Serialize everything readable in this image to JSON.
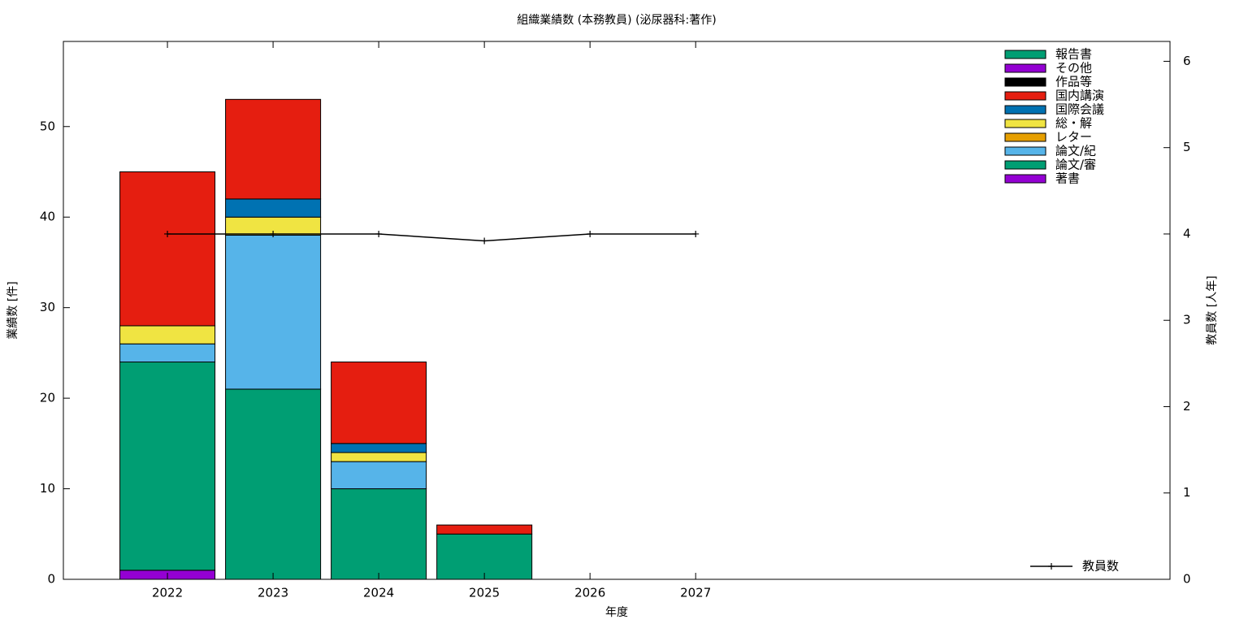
{
  "chart_data": {
    "type": "bar",
    "title": "組織業績数 (本務教員) (泌尿器科:著作)",
    "xlabel": "年度",
    "ylabel": "業績数 [件]",
    "y2label": "教員数 [人年]",
    "x": [
      2022,
      2023,
      2024,
      2025,
      2026,
      2027
    ],
    "xlim": [
      2021.015,
      2031.49
    ],
    "xticks": [
      2022,
      2023,
      2024,
      2025,
      2026,
      2027
    ],
    "ylim": [
      0,
      59.4
    ],
    "yticks": [
      0,
      10,
      20,
      30,
      40,
      50
    ],
    "y2lim": [
      0,
      6.23
    ],
    "y2ticks": [
      0,
      1,
      2,
      3,
      4,
      5,
      6
    ],
    "legend": "upper right",
    "series": [
      {
        "name": "著書",
        "color": "#9400d3",
        "values": [
          1,
          0,
          0,
          0,
          0,
          0
        ]
      },
      {
        "name": "論文/審",
        "color": "#009e73",
        "values": [
          23,
          21,
          10,
          5,
          0,
          0
        ]
      },
      {
        "name": "論文/紀",
        "color": "#56b4e9",
        "values": [
          2,
          17,
          3,
          0,
          0,
          0
        ]
      },
      {
        "name": "レター",
        "color": "#e69f00",
        "values": [
          0,
          0,
          0,
          0,
          0,
          0
        ]
      },
      {
        "name": "総・解",
        "color": "#f0e442",
        "values": [
          2,
          2,
          1,
          0,
          0,
          0
        ]
      },
      {
        "name": "国際会議",
        "color": "#0072b2",
        "values": [
          0,
          2,
          1,
          0,
          0,
          0
        ]
      },
      {
        "name": "国内講演",
        "color": "#e51e10",
        "values": [
          17,
          11,
          9,
          1,
          0,
          0
        ]
      },
      {
        "name": "作品等",
        "color": "#000000",
        "values": [
          0,
          0,
          0,
          0,
          0,
          0
        ]
      },
      {
        "name": "その他",
        "color": "#9400d3",
        "values": [
          0,
          0,
          0,
          0,
          0,
          0
        ]
      },
      {
        "name": "報告書",
        "color": "#009e73",
        "values": [
          0,
          0,
          0,
          0,
          0,
          0
        ]
      },
      {
        "name": "教員数",
        "type": "line",
        "axis": "y2",
        "color": "#000000",
        "values": [
          4,
          4,
          4,
          3.92,
          4,
          4
        ]
      }
    ]
  }
}
